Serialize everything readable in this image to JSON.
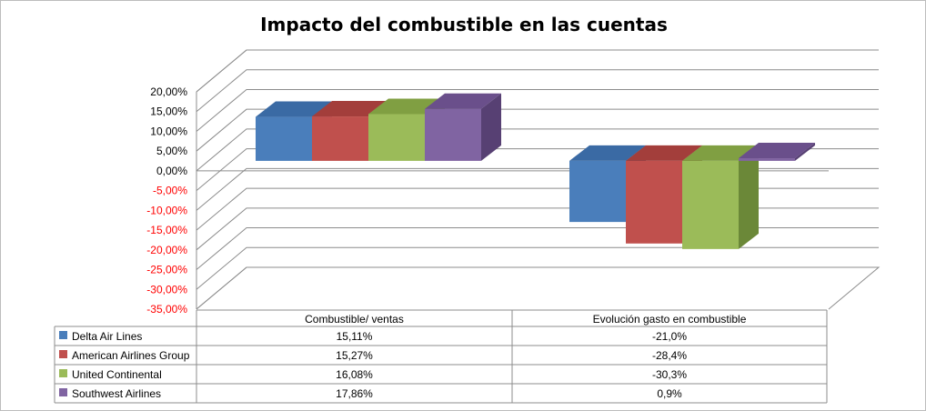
{
  "chart_data": {
    "type": "bar",
    "title": "Impacto del combustible en las cuentas",
    "categories": [
      "Combustible/ ventas",
      "Evolución gasto en combustible"
    ],
    "series": [
      {
        "name": "Delta Air Lines",
        "values": [
          15.11,
          -21.0
        ],
        "labels": [
          "15,11%",
          "-21,0%"
        ],
        "color": "#4a7ebb",
        "top_color": "#3a6aa4",
        "side_color": "#2f5a8e"
      },
      {
        "name": "American Airlines Group",
        "values": [
          15.27,
          -28.4
        ],
        "labels": [
          "15,27%",
          "-28,4%"
        ],
        "color": "#c0504d",
        "top_color": "#a33e3b",
        "side_color": "#8f3432"
      },
      {
        "name": "United Continental",
        "values": [
          16.08,
          -30.3
        ],
        "labels": [
          "16,08%",
          "-30,3%"
        ],
        "color": "#9bbb59",
        "top_color": "#809f42",
        "side_color": "#6b8838"
      },
      {
        "name": "Southwest Airlines",
        "values": [
          17.86,
          0.9
        ],
        "labels": [
          "17,86%",
          "0,9%"
        ],
        "color": "#8064a2",
        "top_color": "#6a4f8b",
        "side_color": "#574073"
      }
    ],
    "yticks": [
      "20,00%",
      "15,00%",
      "10,00%",
      "5,00%",
      "0,00%",
      "-5,00%",
      "-10,00%",
      "-15,00%",
      "-20,00%",
      "-25,00%",
      "-30,00%",
      "-35,00%"
    ],
    "ylim": [
      -35,
      20
    ],
    "negative_tick_color": "#ff0000",
    "positive_tick_color": "#000000",
    "data_table": true,
    "grid": true
  }
}
